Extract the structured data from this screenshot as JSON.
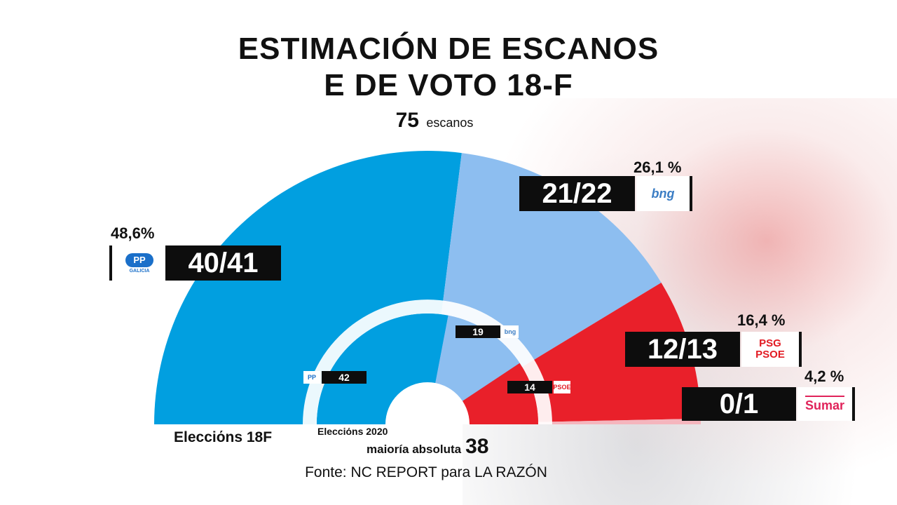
{
  "title_line1": "ESTIMACIÓN DE ESCANOS",
  "title_line2": "E DE VOTO 18-F",
  "total_seats": "75",
  "total_seats_label": "escanos",
  "colors": {
    "pp": "#019fe0",
    "bng": "#8dbef0",
    "psoe": "#e9202a",
    "sumar": "#e0235a"
  },
  "chart_data": [
    {
      "type": "pie",
      "title": "Elecciόns 18F",
      "total": 75,
      "series": [
        {
          "name": "PP Galicia",
          "seats": "40/41",
          "seats_value": 40.5,
          "vote_pct": "48,6%",
          "color": "#019fe0"
        },
        {
          "name": "BNG",
          "seats": "21/22",
          "seats_value": 21.5,
          "vote_pct": "26,1 %",
          "color": "#8dbef0"
        },
        {
          "name": "PSG PSOE",
          "seats": "12/13",
          "seats_value": 12.5,
          "vote_pct": "16,4 %",
          "color": "#e9202a"
        },
        {
          "name": "Sumar",
          "seats": "0/1",
          "seats_value": 0.5,
          "vote_pct": "4,2 %",
          "color": "#f5b5bd"
        }
      ]
    },
    {
      "type": "pie",
      "title": "Elecciόns 2020",
      "total": 75,
      "series": [
        {
          "name": "PP",
          "seats": 42,
          "color": "#019fe0"
        },
        {
          "name": "BNG",
          "seats": 19,
          "color": "#8dbef0"
        },
        {
          "name": "PSOE",
          "seats": 14,
          "color": "#e9202a"
        }
      ]
    }
  ],
  "parties": {
    "pp": {
      "seats": "40/41",
      "pct": "48,6%",
      "logo": "PP",
      "logo_sub": "GALICIA",
      "prev": "42"
    },
    "bng": {
      "seats": "21/22",
      "pct": "26,1 %",
      "logo": "bng",
      "prev": "19"
    },
    "psoe": {
      "seats": "12/13",
      "pct": "16,4 %",
      "logo_l1": "PSG",
      "logo_l2": "PSOE",
      "prev": "14"
    },
    "sumar": {
      "seats": "0/1",
      "pct": "4,2 %",
      "logo": "Sumar"
    }
  },
  "label_18f": "Elecciόns 18F",
  "label_2020": "Elecciόns 2020",
  "majority_label": "maioría absoluta",
  "majority_value": "38",
  "source": "Fonte:  NC REPORT para LA RAZÓN"
}
